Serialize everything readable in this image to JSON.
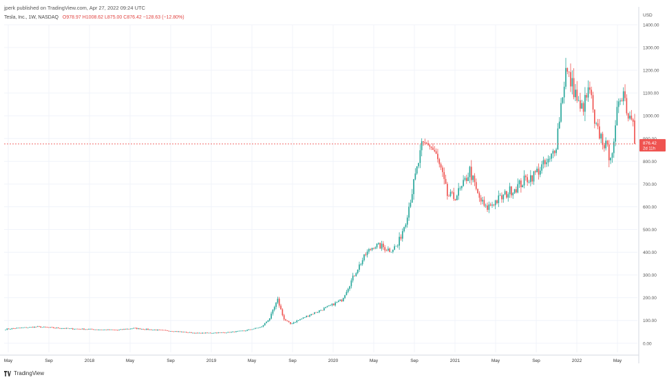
{
  "header": {
    "published_line": "jperk published on TradingView.com, Apr 27, 2022 09:24 UTC",
    "symbol_line": "Tesla, Inc., 1W, NASDAQ",
    "ohlc_line": "O978.97 H1008.62 L875.00 C876.42 −128.63 (−12.80%)"
  },
  "footer": {
    "brand": "TradingView",
    "logo_icon": "tradingview-logo-icon"
  },
  "price_tag": {
    "price": "876.42",
    "countdown": "2d 11h"
  },
  "colors": {
    "up": "#26a69a",
    "down": "#ef5350",
    "last_price_line": "#ef5350",
    "grid": "#f0f3fa",
    "axis_text": "#555555"
  },
  "chart_data": {
    "type": "candlestick",
    "timeframe": "1W",
    "currency": "USD",
    "y_axis": {
      "label": "USD",
      "ticks": [
        0,
        100,
        200,
        300,
        400,
        500,
        600,
        700,
        800,
        900,
        1000,
        1100,
        1200,
        1300,
        1400
      ],
      "tick_labels": [
        "0.00",
        "100.00",
        "200.00",
        "300.00",
        "400.00",
        "500.00",
        "600.00",
        "700.00",
        "800.00",
        "900.00",
        "1000.00",
        "1100.00",
        "1200.00",
        "1300.00",
        "1400.00"
      ],
      "ylim": [
        -40,
        1400
      ]
    },
    "x_axis": {
      "tick_labels": [
        "May",
        "Sep",
        "2018",
        "May",
        "Sep",
        "2019",
        "May",
        "Sep",
        "2020",
        "May",
        "Sep",
        "2021",
        "May",
        "Sep",
        "2022",
        "May"
      ]
    },
    "last_price": 876.42,
    "grid": true,
    "anchors": [
      [
        0,
        62
      ],
      [
        10,
        68
      ],
      [
        20,
        72
      ],
      [
        30,
        68
      ],
      [
        40,
        64
      ],
      [
        50,
        62
      ],
      [
        60,
        60
      ],
      [
        70,
        58
      ],
      [
        80,
        66
      ],
      [
        90,
        60
      ],
      [
        100,
        56
      ],
      [
        110,
        50
      ],
      [
        120,
        44
      ],
      [
        130,
        46
      ],
      [
        140,
        48
      ],
      [
        150,
        56
      ],
      [
        160,
        72
      ],
      [
        165,
        110
      ],
      [
        170,
        190
      ],
      [
        174,
        105
      ],
      [
        178,
        85
      ],
      [
        190,
        125
      ],
      [
        200,
        155
      ],
      [
        210,
        190
      ],
      [
        215,
        260
      ],
      [
        220,
        330
      ],
      [
        225,
        390
      ],
      [
        230,
        430
      ],
      [
        235,
        425
      ],
      [
        240,
        410
      ],
      [
        245,
        430
      ],
      [
        250,
        540
      ],
      [
        255,
        700
      ],
      [
        260,
        860
      ],
      [
        264,
        880
      ],
      [
        268,
        840
      ],
      [
        272,
        760
      ],
      [
        276,
        650
      ],
      [
        280,
        640
      ],
      [
        285,
        680
      ],
      [
        290,
        760
      ],
      [
        295,
        650
      ],
      [
        300,
        590
      ],
      [
        305,
        620
      ],
      [
        310,
        640
      ],
      [
        315,
        670
      ],
      [
        320,
        690
      ],
      [
        325,
        720
      ],
      [
        330,
        740
      ],
      [
        335,
        775
      ],
      [
        340,
        800
      ],
      [
        344,
        880
      ],
      [
        347,
        1050
      ],
      [
        350,
        1200
      ],
      [
        353,
        1150
      ],
      [
        356,
        1100
      ],
      [
        359,
        1020
      ],
      [
        362,
        1060
      ],
      [
        365,
        1120
      ],
      [
        368,
        950
      ],
      [
        371,
        920
      ],
      [
        374,
        880
      ],
      [
        377,
        830
      ],
      [
        380,
        860
      ],
      [
        383,
        1080
      ],
      [
        386,
        1110
      ],
      [
        389,
        1000
      ],
      [
        392,
        1005
      ],
      [
        393,
        876.42
      ]
    ],
    "last_candle": {
      "open": 978.97,
      "high": 1008.62,
      "low": 875.0,
      "close": 876.42
    }
  }
}
